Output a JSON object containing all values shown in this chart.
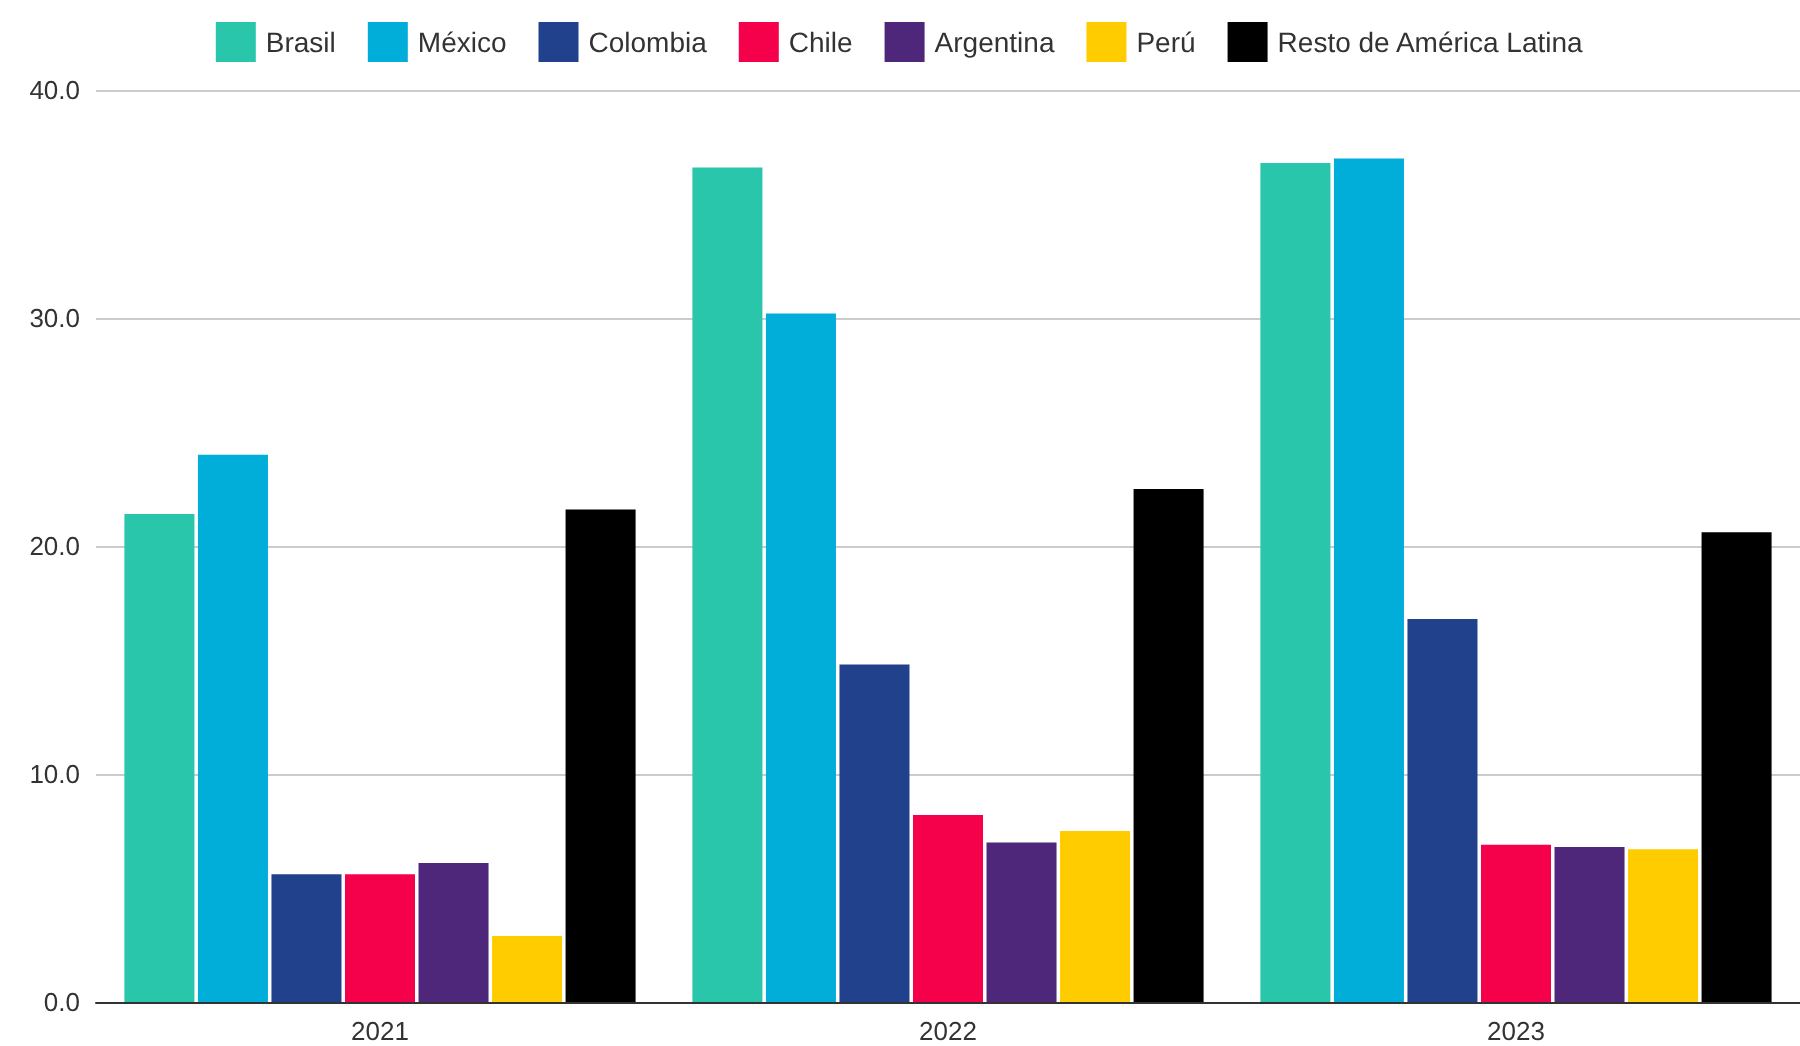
{
  "chart_data": {
    "type": "bar",
    "categories": [
      "2021",
      "2022",
      "2023"
    ],
    "series": [
      {
        "name": "Brasil",
        "color": "#2ac6ac",
        "values": [
          21.4,
          36.6,
          36.8
        ]
      },
      {
        "name": "México",
        "color": "#00aed9",
        "values": [
          24.0,
          30.2,
          37.0
        ]
      },
      {
        "name": "Colombia",
        "color": "#22418c",
        "values": [
          5.6,
          14.8,
          16.8
        ]
      },
      {
        "name": "Chile",
        "color": "#f5004a",
        "values": [
          5.6,
          8.2,
          6.9
        ]
      },
      {
        "name": "Argentina",
        "color": "#4e277b",
        "values": [
          6.1,
          7.0,
          6.8
        ]
      },
      {
        "name": "Perú",
        "color": "#ffcc00",
        "values": [
          2.9,
          7.5,
          6.7
        ]
      },
      {
        "name": "Resto de América Latina",
        "color": "#000000",
        "values": [
          21.6,
          22.5,
          20.6
        ]
      }
    ],
    "ylim": [
      0,
      40
    ],
    "yticks": [
      {
        "value": 0,
        "label": "0.0"
      },
      {
        "value": 10,
        "label": "10.0"
      },
      {
        "value": 20,
        "label": "20.0"
      },
      {
        "value": 30,
        "label": "30.0"
      },
      {
        "value": 40,
        "label": "40.0"
      }
    ],
    "grid": "y",
    "legend": "top"
  }
}
